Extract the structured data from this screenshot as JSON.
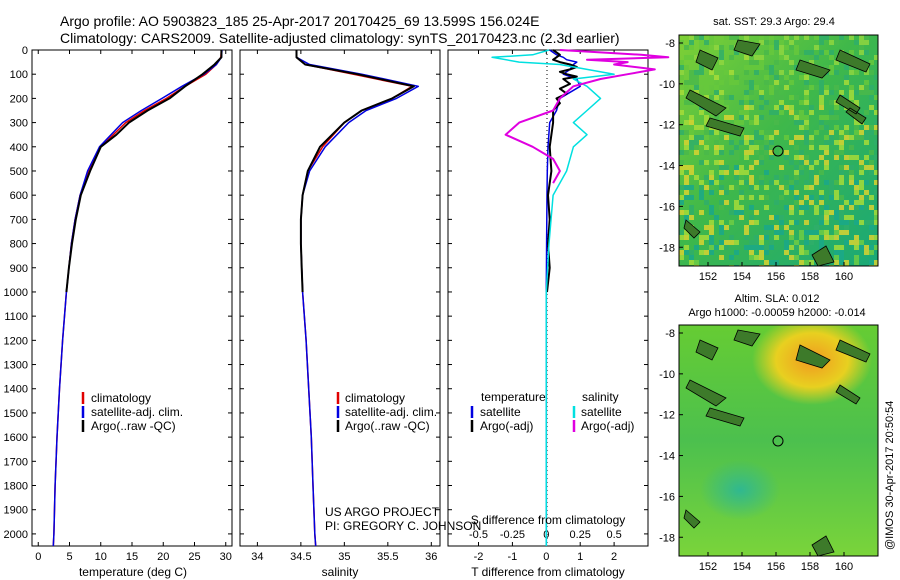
{
  "header": {
    "line1": "Argo profile: AO 5903823_185 25-Apr-2017 20170425_69 13.599S 156.024E",
    "line2": "Climatology: CARS2009. Satellite-adjusted climatology: synTS_20170423.nc (2.3d earlier)"
  },
  "colors": {
    "climatology": "#e00000",
    "satellite": "#0000e0",
    "argo": "#000000",
    "sal_satellite": "#00e0e0",
    "sal_argo": "#e000e0"
  },
  "chart_data": [
    {
      "type": "line",
      "panel": "temperature",
      "xlabel": "temperature (deg C)",
      "ylabel": "",
      "xlim": [
        -1,
        31
      ],
      "ylim": [
        2050,
        0
      ],
      "xticks": [
        "0",
        "5",
        "10",
        "15",
        "20",
        "25",
        "30"
      ],
      "yticks": [
        "0",
        "100",
        "200",
        "300",
        "400",
        "500",
        "600",
        "700",
        "800",
        "900",
        "1000",
        "1100",
        "1200",
        "1300",
        "1400",
        "1500",
        "1600",
        "1700",
        "1800",
        "1900",
        "2000"
      ],
      "legend": [
        "climatology",
        "satellite-adj. clim.",
        "Argo(..raw -QC)"
      ],
      "series": [
        {
          "name": "climatology",
          "y": [
            0,
            30,
            60,
            100,
            150,
            200,
            250,
            300,
            400,
            500,
            600,
            700,
            800,
            900,
            1000,
            1200,
            1400,
            1600,
            1800,
            2000,
            2050
          ],
          "x": [
            29.3,
            29.2,
            28.5,
            26.8,
            23.5,
            20.5,
            17.0,
            14.0,
            10.0,
            8.0,
            6.7,
            5.9,
            5.3,
            4.9,
            4.5,
            3.9,
            3.4,
            3.0,
            2.7,
            2.5,
            2.4
          ]
        },
        {
          "name": "satellite-adj. clim.",
          "y": [
            0,
            30,
            60,
            100,
            150,
            200,
            250,
            300,
            400,
            500,
            600,
            700,
            800,
            900,
            1000,
            1200,
            1400,
            1600,
            1800,
            2000,
            2050
          ],
          "x": [
            29.4,
            29.3,
            28.5,
            26.5,
            23.0,
            19.8,
            16.5,
            13.5,
            9.8,
            7.9,
            6.7,
            5.9,
            5.3,
            4.9,
            4.5,
            3.9,
            3.4,
            3.0,
            2.7,
            2.5,
            2.4
          ]
        },
        {
          "name": "Argo(..raw -QC)",
          "y": [
            0,
            30,
            60,
            100,
            150,
            200,
            250,
            300,
            350,
            400,
            500,
            600,
            700,
            800,
            900,
            1000
          ],
          "x": [
            29.3,
            29.3,
            28.2,
            26.3,
            23.5,
            21.0,
            17.5,
            14.5,
            12.5,
            10.0,
            8.3,
            6.8,
            6.0,
            5.4,
            4.9,
            4.5
          ]
        }
      ]
    },
    {
      "type": "line",
      "panel": "salinity",
      "xlabel": "salinity",
      "ylabel": "",
      "xlim": [
        33.8,
        36.1
      ],
      "ylim": [
        2050,
        0
      ],
      "xticks": [
        "34",
        "34.5",
        "35",
        "35.5",
        "36"
      ],
      "legend": [
        "climatology",
        "satellite-adj. clim.",
        "Argo(..raw -QC)"
      ],
      "series": [
        {
          "name": "climatology",
          "y": [
            0,
            30,
            60,
            100,
            150,
            200,
            250,
            300,
            400,
            500,
            600,
            700,
            800,
            1000,
            1200,
            1400,
            1600,
            1800,
            2000,
            2050
          ],
          "x": [
            34.45,
            34.45,
            34.55,
            35.1,
            35.78,
            35.55,
            35.2,
            35.0,
            34.75,
            34.58,
            34.52,
            34.5,
            34.5,
            34.52,
            34.56,
            34.59,
            34.62,
            34.64,
            34.66,
            34.67
          ]
        },
        {
          "name": "satellite-adj. clim.",
          "y": [
            0,
            30,
            60,
            100,
            150,
            200,
            250,
            300,
            400,
            500,
            600,
            700,
            800,
            1000,
            1200,
            1400,
            1600,
            1800,
            2000,
            2050
          ],
          "x": [
            34.45,
            34.45,
            34.6,
            35.2,
            35.85,
            35.6,
            35.25,
            35.05,
            34.78,
            34.6,
            34.52,
            34.5,
            34.5,
            34.52,
            34.56,
            34.59,
            34.62,
            34.64,
            34.66,
            34.67
          ]
        },
        {
          "name": "Argo(..raw -QC)",
          "y": [
            0,
            30,
            60,
            100,
            150,
            200,
            250,
            300,
            400,
            500,
            600,
            700,
            800,
            900,
            1000
          ],
          "x": [
            34.45,
            34.45,
            34.55,
            35.15,
            35.8,
            35.55,
            35.2,
            35.0,
            34.72,
            34.58,
            34.52,
            34.5,
            34.5,
            34.51,
            34.52
          ]
        }
      ]
    },
    {
      "type": "line",
      "panel": "difference",
      "title": "S difference from climatology",
      "xlabel": "T difference from climatology",
      "xlim": [
        -2.9,
        3.0
      ],
      "ylim": [
        2050,
        0
      ],
      "xticks_T": [
        "-2",
        "-1",
        "0",
        "1",
        "2"
      ],
      "xticks_S_labels": [
        "-0.5",
        "-0.25",
        "0",
        "0.25",
        "0.5"
      ],
      "legend": {
        "temperature_header": "temperature",
        "salinity_header": "salinity",
        "t_sat": "satellite",
        "t_argo": "Argo(-adj)",
        "s_sat": "satellite",
        "s_argo": "Argo(-adj)"
      },
      "series": [
        {
          "name": "T satellite",
          "y": [
            0,
            10,
            20,
            30,
            40,
            50,
            60,
            80,
            100,
            120,
            150,
            200,
            250,
            300,
            400,
            500,
            600,
            800,
            1000,
            1500,
            2000,
            2050
          ],
          "x": [
            0.1,
            0.2,
            0.3,
            0.5,
            0.6,
            0.9,
            0.8,
            0.7,
            0.5,
            0.9,
            1.0,
            0.4,
            0.3,
            0.1,
            0.05,
            0.03,
            0.02,
            0.01,
            0,
            0,
            0,
            0
          ]
        },
        {
          "name": "T Argo(-adj)",
          "y": [
            0,
            20,
            30,
            40,
            50,
            60,
            70,
            80,
            90,
            100,
            110,
            120,
            140,
            160,
            180,
            200,
            220,
            250,
            300,
            400,
            500,
            600,
            700,
            800,
            900,
            1000
          ],
          "x": [
            0.2,
            0.4,
            0.3,
            0.2,
            0.4,
            0.7,
            0.9,
            0.7,
            0.4,
            0.6,
            0.9,
            0.5,
            0.7,
            0.4,
            0.6,
            0.3,
            0.4,
            0.2,
            0.2,
            0.1,
            0.15,
            0.05,
            0.1,
            0.05,
            0.1,
            0.02
          ]
        },
        {
          "name": "S satellite",
          "y": [
            0,
            20,
            30,
            50,
            60,
            80,
            100,
            120,
            150,
            200,
            250,
            300,
            350,
            400,
            500,
            600,
            800,
            1000,
            1500,
            2000,
            2050
          ],
          "x": [
            0.02,
            -0.1,
            -0.4,
            -0.2,
            0.1,
            0.3,
            0.5,
            0.2,
            0.3,
            0.4,
            0.3,
            0.2,
            0.3,
            0.2,
            0.15,
            0.05,
            0.02,
            0,
            0,
            0,
            0
          ]
        },
        {
          "name": "S Argo(-adj)",
          "y": [
            0,
            10,
            20,
            30,
            40,
            50,
            60,
            80,
            100,
            120,
            150,
            200,
            250,
            300,
            350,
            400,
            450,
            500,
            550
          ],
          "x": [
            0.1,
            0.4,
            0.7,
            0.9,
            0.3,
            0.6,
            0.5,
            0.8,
            0.6,
            0.4,
            0.2,
            0.1,
            0.05,
            -0.2,
            -0.3,
            -0.1,
            0.05,
            0.1,
            0.05
          ]
        }
      ]
    }
  ],
  "maps": {
    "sst": {
      "title": "sat. SST: 29.3 Argo: 29.4",
      "yticks": [
        "-8",
        "-10",
        "-12",
        "-14",
        "-16",
        "-18"
      ],
      "xticks": [
        "152",
        "154",
        "156",
        "158",
        "160"
      ]
    },
    "sla": {
      "title1": "Altim. SLA: 0.012",
      "title2": "Argo h1000: -0.00059 h2000: -0.014",
      "yticks": [
        "-8",
        "-10",
        "-12",
        "-14",
        "-16",
        "-18"
      ],
      "xticks": [
        "152",
        "154",
        "156",
        "158",
        "160"
      ]
    }
  },
  "footer": {
    "project": "US ARGO PROJECT",
    "pi": "PI: GREGORY C. JOHNSON",
    "stamp": "@IMOS 30-Apr-2017 20:50:54"
  }
}
